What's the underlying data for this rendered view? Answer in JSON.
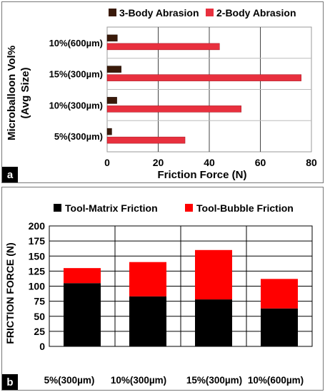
{
  "chart_data": [
    {
      "panel": "a",
      "type": "bar",
      "orientation": "horizontal",
      "categories": [
        "10%(600µm)",
        "15%(300µm)",
        "10%(300µm)",
        "5%(300µm)"
      ],
      "series": [
        {
          "name": "3-Body Abrasion",
          "values": [
            4,
            5.5,
            3.8,
            1.8
          ],
          "color": "#3a1a0a"
        },
        {
          "name": "2-Body Abrasion",
          "values": [
            44,
            76,
            52.5,
            30.5
          ],
          "color": "#e8303e"
        }
      ],
      "xlabel": "Friction Force (N)",
      "ylabel": "Microballoon Vol%\n(Avg Size)",
      "xlim": [
        0,
        80
      ],
      "xticks": [
        0,
        20,
        40,
        60,
        80
      ],
      "grid": true,
      "legend": "top"
    },
    {
      "panel": "b",
      "type": "bar",
      "stacked": true,
      "categories": [
        "5%(300µm)",
        "10%(300µm)",
        "15%(300µm)",
        "10%(600µm)"
      ],
      "series": [
        {
          "name": "Tool-Matrix Friction",
          "values": [
            105,
            83,
            78,
            63
          ],
          "color": "#000000"
        },
        {
          "name": "Tool-Bubble Friction",
          "values": [
            25,
            57,
            82,
            49
          ],
          "color": "#ff0000"
        }
      ],
      "ylabel": "FRICTION FORCE (N)",
      "ylim": [
        0,
        200
      ],
      "yticks": [
        0,
        25,
        50,
        75,
        100,
        125,
        150,
        175,
        200
      ],
      "grid": true,
      "legend": "top"
    }
  ],
  "panels": {
    "a": "a",
    "b": "b"
  }
}
